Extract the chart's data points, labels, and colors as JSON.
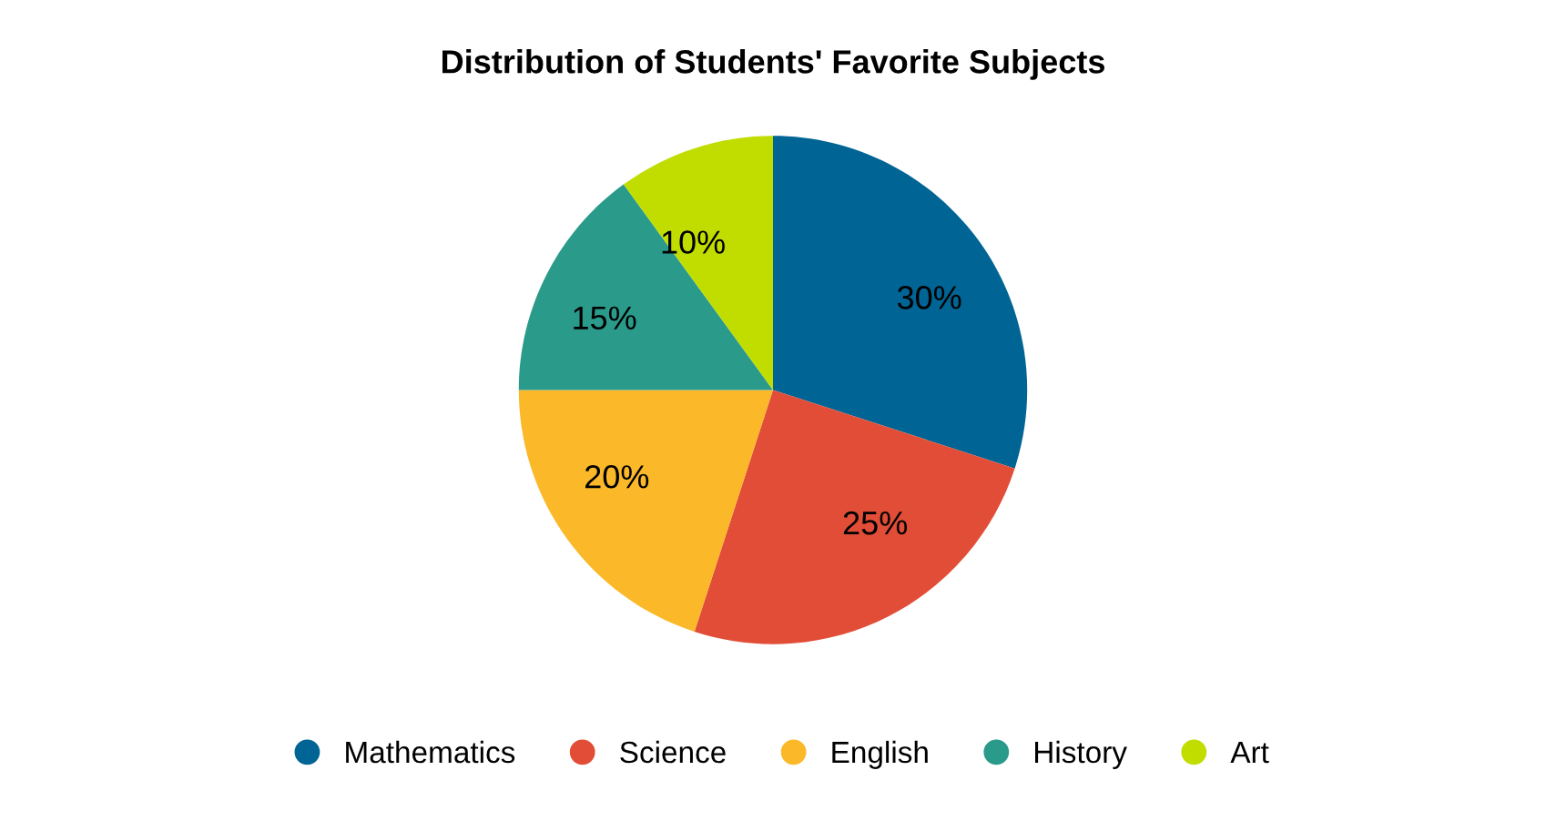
{
  "chart_data": {
    "type": "pie",
    "title": "Distribution of Students' Favorite Subjects",
    "categories": [
      "Mathematics",
      "Science",
      "English",
      "History",
      "Art"
    ],
    "values": [
      30,
      25,
      20,
      15,
      10
    ],
    "colors": [
      "#006494",
      "#e24d37",
      "#fbb829",
      "#2a9a8a",
      "#c1dd00"
    ],
    "value_labels": [
      "30%",
      "25%",
      "20%",
      "15%",
      "10%"
    ],
    "legend": "bottom"
  }
}
